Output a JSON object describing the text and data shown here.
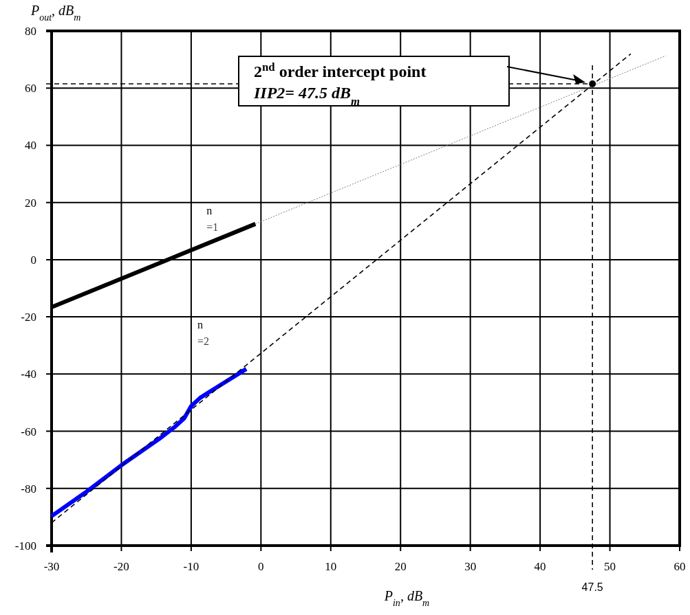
{
  "chart_data": {
    "type": "line",
    "xlabel": "P$_{in}$,  dB$_{m}$",
    "ylabel": "P$_{out}$,  dB$_{m}$",
    "xlim": [
      -30,
      60
    ],
    "xticks": [
      -30,
      -20,
      -10,
      0,
      10,
      20,
      30,
      40,
      50,
      60
    ],
    "ylim": [
      -100,
      80
    ],
    "yticks": [
      -100,
      -80,
      -60,
      -40,
      -20,
      0,
      20,
      40,
      60,
      80
    ],
    "grid": true,
    "series": [
      {
        "color": "#000000",
        "x": [
          -30,
          -0.8
        ],
        "values": [
          -16.6,
          12.5
        ],
        "line_style": "solid"
      },
      {
        "color": "#808080",
        "x": [
          -0.8,
          58
        ],
        "values": [
          12.5,
          71.3
        ],
        "line_style": "dotted"
      },
      {
        "color": "#0000ff",
        "x": [
          -30,
          -25.2,
          -20,
          -14.6,
          -12.3,
          -11,
          -10,
          -8.7,
          -6.7,
          -2.1
        ],
        "values": [
          -89.7,
          -81.5,
          -71.9,
          -62.7,
          -58.4,
          -55.5,
          -51.2,
          -48.3,
          -45.2,
          -38.2
        ],
        "line_style": "solid"
      },
      {
        "color": "#000000",
        "x": [
          -30,
          53
        ],
        "values": [
          -92,
          72
        ],
        "line_style": "dashed"
      },
      {
        "type": "scatter",
        "color": "#000000",
        "x": [
          47.5
        ],
        "values": [
          61.5
        ],
        "marker": "circle"
      }
    ],
    "ref_lines": [
      {
        "axis": "x",
        "value": 47.5,
        "label": "47.5",
        "line_style": "dashed"
      },
      {
        "axis": "y",
        "value": 61.5,
        "line_style": "dashed"
      }
    ],
    "annotations": [
      "2$^{nd}$ order intercept point\nIIP2= 47.5 dB$_{m}$",
      "n\n=1",
      "n\n=2"
    ]
  }
}
